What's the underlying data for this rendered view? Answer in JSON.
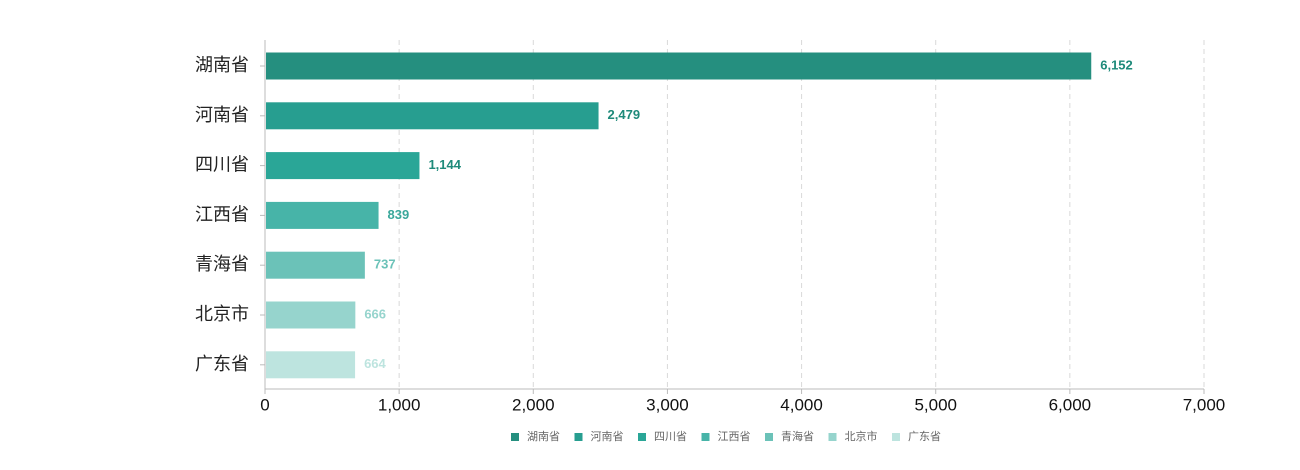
{
  "chart_data": {
    "type": "bar",
    "orientation": "horizontal",
    "categories": [
      "湖南省",
      "河南省",
      "四川省",
      "江西省",
      "青海省",
      "北京市",
      "广东省"
    ],
    "values": [
      6152,
      2479,
      1144,
      839,
      737,
      666,
      664
    ],
    "value_labels": [
      "6,152",
      "2,479",
      "1,144",
      "839",
      "737",
      "666",
      "664"
    ],
    "colors": [
      "#258f7f",
      "#279e90",
      "#2aa697",
      "#47b4a8",
      "#6bc2b8",
      "#96d4cd",
      "#bde4df"
    ],
    "label_colors": [
      "#1e8a7a",
      "#1e8a7a",
      "#1e8a7a",
      "#3aa89b",
      "#6bc2b8",
      "#96d4cd",
      "#bde4df"
    ],
    "xlim": [
      0,
      7000
    ],
    "x_ticks": [
      0,
      1000,
      2000,
      3000,
      4000,
      5000,
      6000,
      7000
    ],
    "x_tick_labels": [
      "0",
      "1,000",
      "2,000",
      "3,000",
      "4,000",
      "5,000",
      "6,000",
      "7,000"
    ],
    "grid": "vertical dashed",
    "legend": {
      "placement": "bottom-center",
      "items": [
        "湖南省",
        "河南省",
        "四川省",
        "江西省",
        "青海省",
        "北京市",
        "广东省"
      ]
    },
    "title": "",
    "xlabel": "",
    "ylabel": ""
  }
}
